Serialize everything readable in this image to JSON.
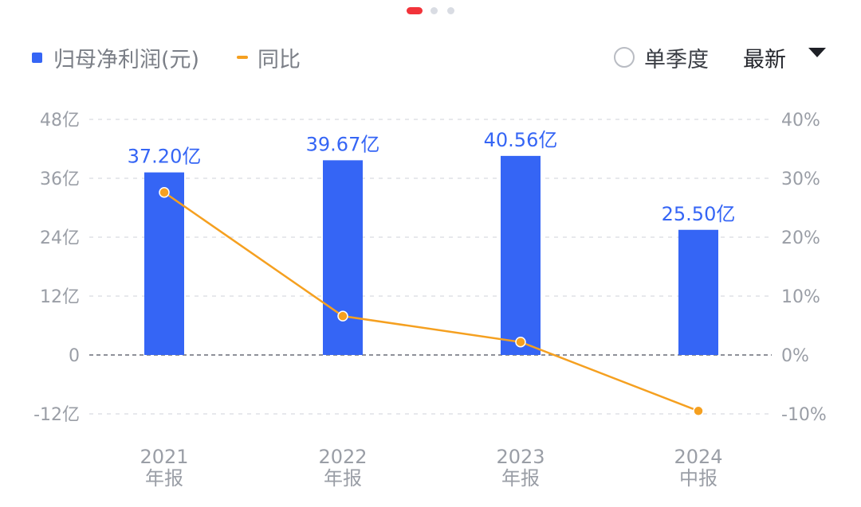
{
  "legend": {
    "bar_label": "归母净利润(元)",
    "line_label": "同比"
  },
  "controls": {
    "single_quarter_label": "单季度",
    "period_label": "最新"
  },
  "colors": {
    "bar": "#3565f5",
    "line": "#f5a020",
    "pager_active": "#f2333a"
  },
  "icons": {
    "radio": "radio-icon",
    "dropdown": "caret-down-icon"
  },
  "chart_data": {
    "type": "bar",
    "categories": [
      "2021\n年报",
      "2022\n年报",
      "2023\n年报",
      "2024\n中报"
    ],
    "series": [
      {
        "name": "归母净利润(元)",
        "type": "bar",
        "axis": "left",
        "values": [
          37.2,
          39.67,
          40.56,
          25.5
        ],
        "labels": [
          "37.20亿",
          "39.67亿",
          "40.56亿",
          "25.50亿"
        ]
      },
      {
        "name": "同比",
        "type": "line",
        "axis": "right",
        "values": [
          27.6,
          6.6,
          2.2,
          -9.5
        ]
      }
    ],
    "y_left": {
      "ylim": [
        -12,
        48
      ],
      "ticks": [
        48,
        36,
        24,
        12,
        0,
        -12
      ],
      "tick_labels": [
        "48亿",
        "36亿",
        "24亿",
        "12亿",
        "0",
        "-12亿"
      ]
    },
    "y_right": {
      "ylim": [
        -10,
        40
      ],
      "ticks": [
        40,
        30,
        20,
        10,
        0,
        -10
      ],
      "tick_labels": [
        "40%",
        "30%",
        "20%",
        "10%",
        "0%",
        "-10%"
      ]
    },
    "grid": true,
    "legend_position": "top-left"
  }
}
